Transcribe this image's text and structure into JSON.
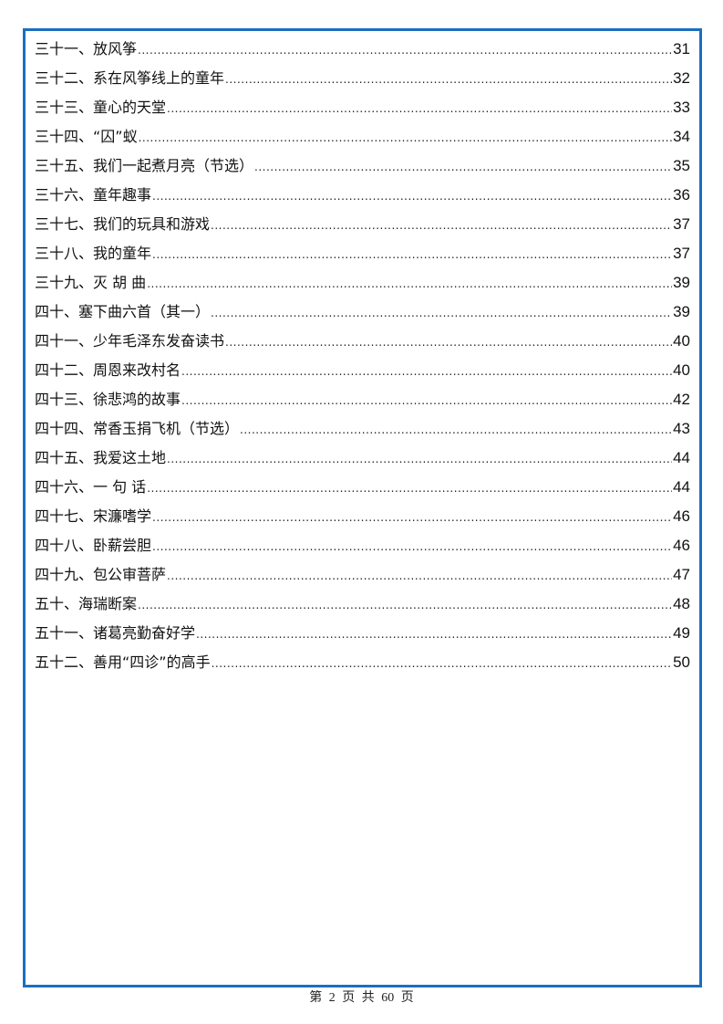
{
  "toc": {
    "entries": [
      {
        "title": "三十一、放风筝",
        "page": "31"
      },
      {
        "title": "三十二、系在风筝线上的童年",
        "page": "32"
      },
      {
        "title": "三十三、童心的天堂",
        "page": "33"
      },
      {
        "title": "三十四、“囚”蚁",
        "page": "34"
      },
      {
        "title": "三十五、我们一起煮月亮（节选）",
        "page": "35"
      },
      {
        "title": "三十六、童年趣事",
        "page": "36"
      },
      {
        "title": "三十七、我们的玩具和游戏",
        "page": "37"
      },
      {
        "title": "三十八、我的童年",
        "page": "37"
      },
      {
        "title": "三十九、灭 胡 曲",
        "page": "39"
      },
      {
        "title": "四十、塞下曲六首（其一）",
        "page": "39"
      },
      {
        "title": "四十一、少年毛泽东发奋读书",
        "page": "40"
      },
      {
        "title": "四十二、周恩来改村名",
        "page": "40"
      },
      {
        "title": "四十三、徐悲鸿的故事",
        "page": "42"
      },
      {
        "title": "四十四、常香玉捐飞机（节选）",
        "page": "43"
      },
      {
        "title": "四十五、我爱这土地",
        "page": "44"
      },
      {
        "title": "四十六、一 句 话",
        "page": "44"
      },
      {
        "title": "四十七、宋濂嗜学",
        "page": "46"
      },
      {
        "title": "四十八、卧薪尝胆",
        "page": "46"
      },
      {
        "title": "四十九、包公审菩萨",
        "page": "47"
      },
      {
        "title": "五十、海瑞断案",
        "page": "48"
      },
      {
        "title": "五十一、诸葛亮勤奋好学",
        "page": "49"
      },
      {
        "title": "五十二、善用“四诊”的高手",
        "page": "50"
      }
    ]
  },
  "footer": {
    "text": "第 2 页 共 60 页"
  },
  "colors": {
    "border": "#1a6fc2"
  }
}
